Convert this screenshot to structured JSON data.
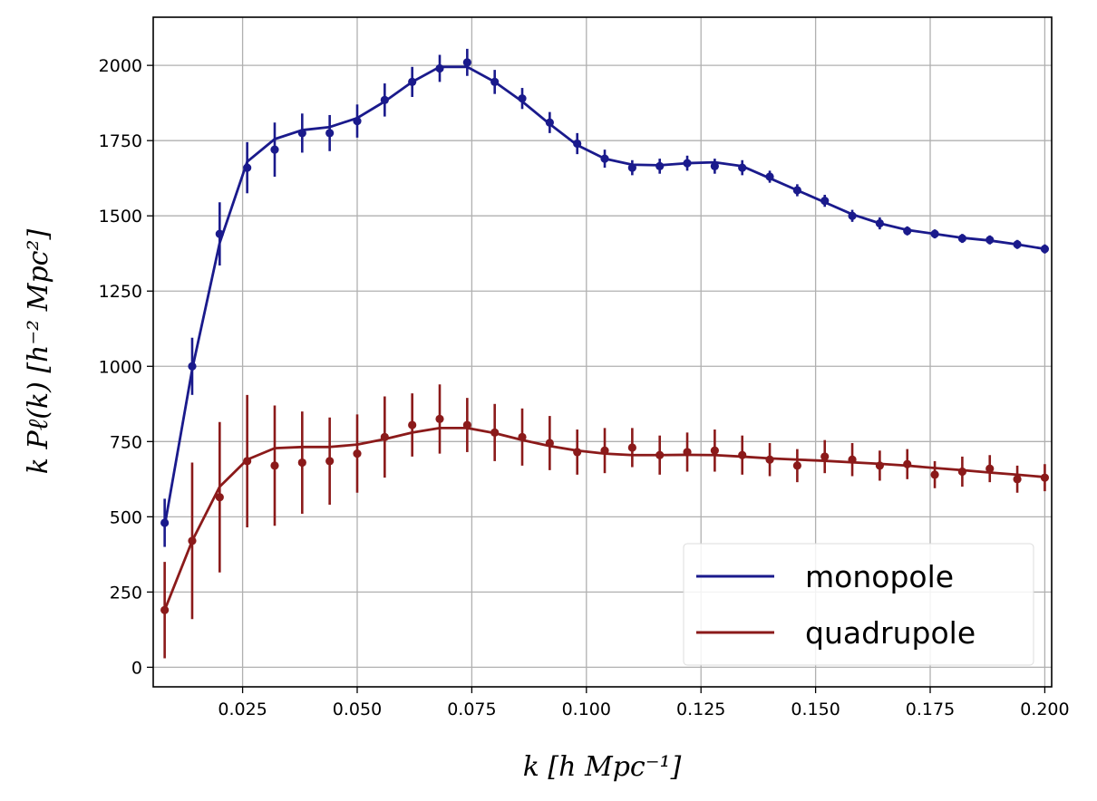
{
  "chart_data": {
    "type": "line",
    "xlabel": "k [h Mpc⁻¹]",
    "ylabel": "k Pℓ(k)  [h⁻² Mpc²]",
    "xlim": [
      0.0055,
      0.2015
    ],
    "ylim": [
      -65,
      2160
    ],
    "xticks": [
      "0.025",
      "0.050",
      "0.075",
      "0.100",
      "0.125",
      "0.150",
      "0.175",
      "0.200"
    ],
    "xtick_values": [
      0.025,
      0.05,
      0.075,
      0.1,
      0.125,
      0.15,
      0.175,
      0.2
    ],
    "yticks": [
      "0",
      "250",
      "500",
      "750",
      "1000",
      "1250",
      "1500",
      "1750",
      "2000"
    ],
    "ytick_values": [
      0,
      250,
      500,
      750,
      1000,
      1250,
      1500,
      1750,
      2000
    ],
    "grid": true,
    "legend": {
      "position": "bottom-right"
    },
    "series": [
      {
        "name": "monopole",
        "color": "#1a1a8c",
        "model_x": [
          0.008,
          0.014,
          0.02,
          0.026,
          0.032,
          0.038,
          0.044,
          0.05,
          0.056,
          0.062,
          0.068,
          0.074,
          0.08,
          0.086,
          0.092,
          0.098,
          0.104,
          0.11,
          0.116,
          0.122,
          0.128,
          0.134,
          0.14,
          0.146,
          0.152,
          0.158,
          0.164,
          0.17,
          0.176,
          0.182,
          0.188,
          0.194,
          0.2
        ],
        "model_y": [
          470,
          990,
          1410,
          1680,
          1755,
          1785,
          1795,
          1825,
          1880,
          1945,
          1995,
          1995,
          1945,
          1880,
          1805,
          1735,
          1690,
          1670,
          1668,
          1675,
          1678,
          1665,
          1625,
          1585,
          1545,
          1505,
          1475,
          1453,
          1440,
          1427,
          1418,
          1405,
          1390
        ],
        "points_y": [
          480,
          1000,
          1440,
          1660,
          1720,
          1775,
          1775,
          1815,
          1885,
          1945,
          1990,
          2010,
          1945,
          1890,
          1810,
          1740,
          1690,
          1660,
          1665,
          1675,
          1665,
          1660,
          1630,
          1585,
          1550,
          1500,
          1475,
          1450,
          1440,
          1425,
          1420,
          1405,
          1390
        ],
        "errors": [
          80,
          95,
          105,
          85,
          90,
          65,
          60,
          55,
          55,
          50,
          45,
          45,
          40,
          35,
          35,
          35,
          30,
          25,
          25,
          25,
          25,
          25,
          20,
          20,
          20,
          20,
          20,
          15,
          15,
          15,
          15,
          15,
          15
        ]
      },
      {
        "name": "quadrupole",
        "color": "#8b1a1a",
        "model_x": [
          0.008,
          0.014,
          0.02,
          0.026,
          0.032,
          0.038,
          0.044,
          0.05,
          0.056,
          0.062,
          0.068,
          0.074,
          0.08,
          0.086,
          0.092,
          0.098,
          0.104,
          0.11,
          0.116,
          0.122,
          0.128,
          0.134,
          0.14,
          0.146,
          0.152,
          0.158,
          0.164,
          0.17,
          0.176,
          0.182,
          0.188,
          0.194,
          0.2
        ],
        "model_y": [
          190,
          420,
          600,
          690,
          728,
          732,
          732,
          740,
          758,
          780,
          795,
          795,
          778,
          755,
          735,
          720,
          710,
          705,
          705,
          706,
          705,
          700,
          694,
          690,
          686,
          681,
          676,
          670,
          662,
          655,
          647,
          640,
          632
        ],
        "points_y": [
          190,
          420,
          565,
          685,
          670,
          680,
          685,
          710,
          765,
          805,
          825,
          805,
          780,
          765,
          745,
          715,
          720,
          730,
          705,
          715,
          720,
          705,
          690,
          670,
          700,
          690,
          670,
          675,
          640,
          650,
          660,
          625,
          630
        ],
        "errors": [
          160,
          260,
          250,
          220,
          200,
          170,
          145,
          130,
          135,
          105,
          115,
          90,
          95,
          95,
          90,
          75,
          75,
          65,
          65,
          65,
          70,
          65,
          55,
          55,
          55,
          55,
          50,
          50,
          45,
          50,
          45,
          45,
          45
        ]
      }
    ]
  }
}
